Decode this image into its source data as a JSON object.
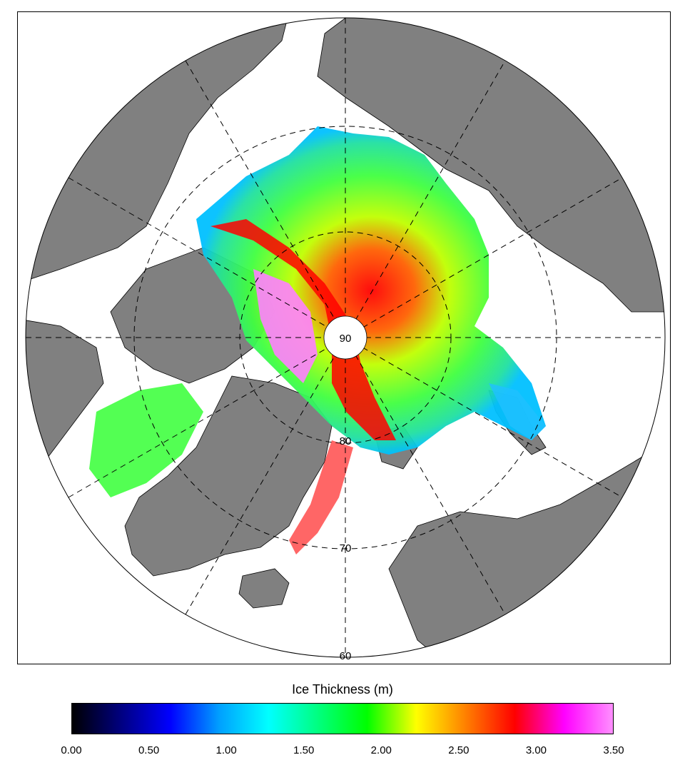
{
  "map": {
    "projection": "north-polar-stereographic",
    "latitude_labels": [
      "90",
      "80",
      "70",
      "60"
    ],
    "colors": {
      "land": "#808080",
      "ocean": "#ffffff",
      "graticule": "#000000",
      "coastline": "#000000"
    }
  },
  "legend": {
    "title": "Ice Thickness (m)",
    "min": 0.0,
    "max": 3.5,
    "ticks": [
      "0.00",
      "0.50",
      "1.00",
      "1.50",
      "2.00",
      "2.50",
      "3.00",
      "3.50"
    ],
    "tick_values": [
      0,
      0.5,
      1.0,
      1.5,
      2.0,
      2.5,
      3.0,
      3.5
    ],
    "colormap": [
      "#000000",
      "#000080",
      "#0000ff",
      "#00a0ff",
      "#00ffff",
      "#00ff80",
      "#00ff00",
      "#ffff00",
      "#ff8000",
      "#ff0000",
      "#ff00ff",
      "#ff90ff"
    ]
  }
}
